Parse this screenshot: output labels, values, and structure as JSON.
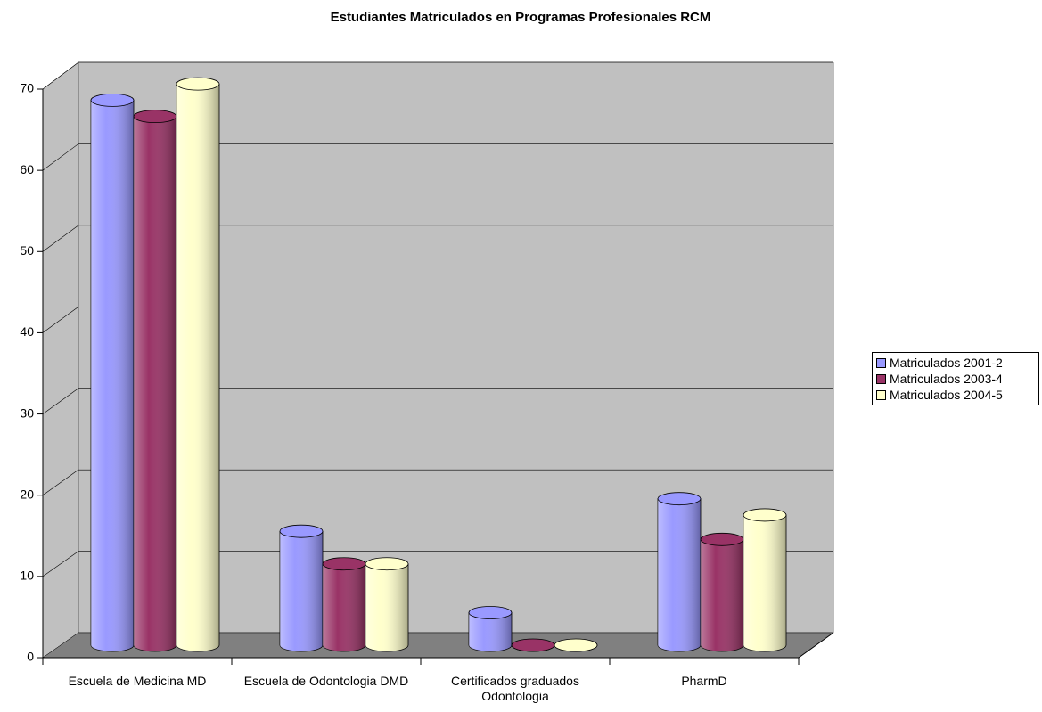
{
  "chart_data": {
    "type": "bar",
    "title": "Estudiantes Matriculados en Programas Profesionales RCM",
    "categories": [
      "Escuela de Medicina MD",
      "Escuela de Odontologia DMD",
      "Certificados graduados Odontologia",
      "PharmD"
    ],
    "series": [
      {
        "name": "Matriculados 2001-2",
        "color": "#9999ff",
        "values": [
          67,
          14,
          4,
          18
        ]
      },
      {
        "name": "Matriculados 2003-4",
        "color": "#993366",
        "values": [
          65,
          10,
          0,
          13
        ]
      },
      {
        "name": "Matriculados 2004-5",
        "color": "#ffffcc",
        "values": [
          69,
          10,
          0,
          16
        ]
      }
    ],
    "ylim": [
      0,
      70
    ],
    "yticks": [
      0,
      10,
      20,
      30,
      40,
      50,
      60,
      70
    ],
    "grid": true,
    "legend": "right"
  }
}
